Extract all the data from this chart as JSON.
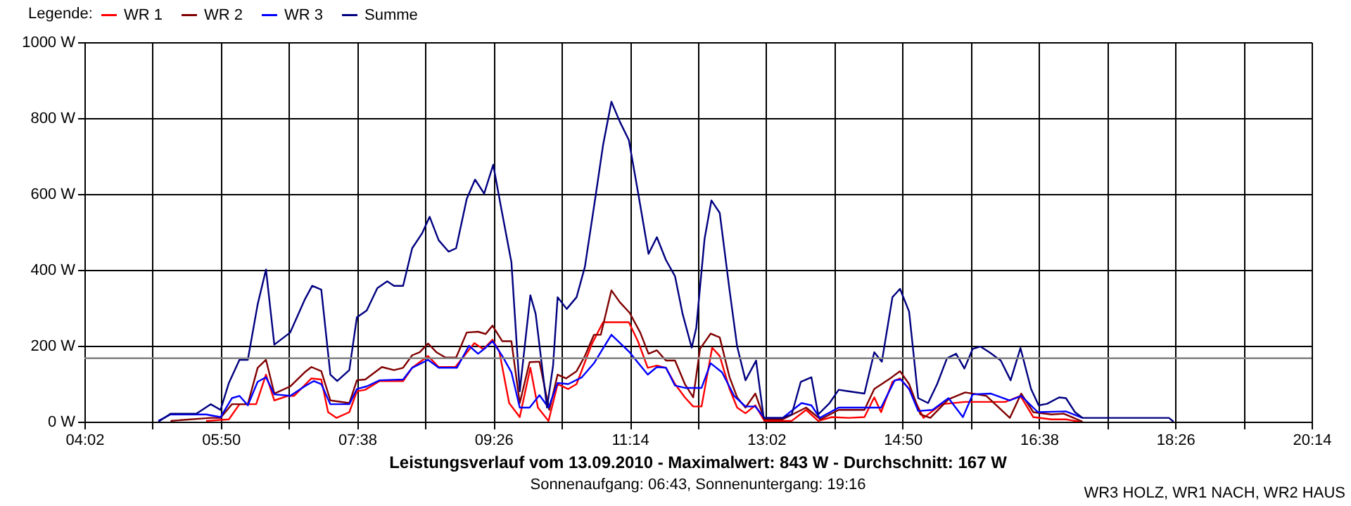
{
  "chart_data": {
    "type": "line",
    "title": "Leistungsverlauf vom 13.09.2010 - Maximalwert: 843 W - Durchschnitt: 167 W",
    "subtitle": "Sonnenaufgang: 06:43, Sonnenuntergang: 19:16",
    "legend_title": "Legende:",
    "annotations": [
      "WR3 HOLZ, WR1 NACH, WR2 HAUS"
    ],
    "series": [
      {
        "name": "WR 1",
        "color": "#ff0000",
        "x": [
          5.64,
          5.94,
          6.08,
          6.3,
          6.43,
          6.54,
          6.72,
          6.8,
          7.03,
          7.16,
          7.25,
          7.36,
          7.53,
          7.63,
          7.74,
          7.93,
          8.24,
          8.36,
          8.57,
          8.71,
          8.93,
          9.18,
          9.3,
          9.42,
          9.51,
          9.64,
          9.78,
          9.92,
          10.02,
          10.16,
          10.28,
          10.42,
          10.53,
          10.73,
          10.88,
          11.22,
          11.34,
          11.47,
          11.59,
          11.71,
          11.83,
          11.96,
          12.07,
          12.18,
          12.32,
          12.42,
          12.55,
          12.65,
          12.76,
          12.89,
          13.01,
          13.37,
          13.56,
          13.72,
          13.9,
          14.12,
          14.33,
          14.46,
          14.55,
          14.7,
          14.8,
          14.92,
          15.11,
          15.35,
          15.66,
          15.88,
          16.19,
          16.39,
          16.56,
          16.8,
          16.99,
          17.17
        ],
        "values": [
          2,
          6,
          46,
          46,
          124,
          56,
          68,
          68,
          114,
          111,
          25,
          10,
          25,
          80,
          84,
          107,
          107,
          142,
          173,
          144,
          144,
          207,
          191,
          216,
          185,
          49,
          12,
          142,
          37,
          2,
          99,
          86,
          99,
          204,
          262,
          262,
          212,
          142,
          148,
          142,
          99,
          64,
          40,
          40,
          195,
          173,
          86,
          37,
          22,
          43,
          2,
          2,
          31,
          2,
          12,
          10,
          12,
          64,
          25,
          105,
          114,
          86,
          10,
          46,
          52,
          52,
          52,
          68,
          12,
          6,
          6,
          0
        ]
      },
      {
        "name": "WR 2",
        "color": "#800000",
        "x": [
          5.17,
          5.7,
          5.83,
          5.98,
          6.19,
          6.32,
          6.43,
          6.54,
          6.75,
          6.94,
          7.03,
          7.16,
          7.28,
          7.53,
          7.63,
          7.74,
          7.96,
          8.12,
          8.24,
          8.36,
          8.46,
          8.57,
          8.68,
          8.8,
          8.94,
          9.08,
          9.23,
          9.33,
          9.42,
          9.55,
          9.67,
          9.78,
          9.91,
          10.04,
          10.17,
          10.28,
          10.39,
          10.53,
          10.64,
          10.76,
          10.85,
          10.99,
          11.1,
          11.23,
          11.37,
          11.48,
          11.59,
          11.71,
          11.83,
          11.96,
          12.07,
          12.16,
          12.3,
          12.42,
          12.55,
          12.65,
          12.76,
          12.89,
          13.01,
          13.25,
          13.56,
          13.75,
          13.99,
          14.33,
          14.46,
          14.67,
          14.8,
          14.92,
          15.07,
          15.2,
          15.44,
          15.66,
          15.94,
          16.25,
          16.4,
          16.56,
          16.8,
          16.96,
          17.14,
          17.21
        ],
        "values": [
          2,
          10,
          10,
          46,
          46,
          142,
          163,
          74,
          93,
          130,
          144,
          133,
          56,
          49,
          109,
          111,
          144,
          136,
          142,
          175,
          183,
          206,
          183,
          169,
          169,
          235,
          237,
          231,
          253,
          212,
          212,
          49,
          157,
          158,
          31,
          124,
          114,
          133,
          173,
          229,
          229,
          346,
          315,
          287,
          235,
          179,
          188,
          161,
          161,
          99,
          64,
          192,
          232,
          222,
          117,
          64,
          37,
          74,
          6,
          6,
          37,
          6,
          31,
          31,
          86,
          114,
          133,
          99,
          19,
          10,
          59,
          77,
          68,
          10,
          74,
          25,
          19,
          21,
          6,
          0
        ]
      },
      {
        "name": "WR 3",
        "color": "#0000ff",
        "x": [
          5.01,
          5.17,
          5.64,
          5.83,
          5.98,
          6.08,
          6.19,
          6.32,
          6.43,
          6.54,
          6.75,
          6.94,
          7.06,
          7.16,
          7.28,
          7.53,
          7.63,
          7.76,
          7.93,
          8.24,
          8.36,
          8.57,
          8.71,
          8.95,
          9.11,
          9.23,
          9.33,
          9.42,
          9.55,
          9.67,
          9.78,
          9.91,
          10.04,
          10.16,
          10.28,
          10.42,
          10.6,
          10.76,
          10.99,
          11.22,
          11.47,
          11.59,
          11.71,
          11.83,
          11.96,
          12.18,
          12.3,
          12.45,
          12.61,
          12.76,
          12.89,
          13.01,
          13.25,
          13.5,
          13.63,
          13.74,
          13.99,
          14.55,
          14.73,
          14.81,
          14.92,
          15.04,
          15.23,
          15.44,
          15.63,
          15.76,
          16.0,
          16.25,
          16.4,
          16.62,
          16.99,
          17.21
        ],
        "values": [
          2,
          19,
          19,
          12,
          62,
          68,
          43,
          105,
          117,
          72,
          68,
          93,
          107,
          99,
          46,
          46,
          86,
          93,
          109,
          111,
          142,
          163,
          142,
          142,
          200,
          179,
          195,
          212,
          173,
          130,
          37,
          37,
          70,
          37,
          102,
          99,
          117,
          154,
          229,
          185,
          124,
          144,
          142,
          95,
          89,
          89,
          154,
          130,
          68,
          40,
          40,
          10,
          10,
          49,
          43,
          10,
          37,
          37,
          109,
          111,
          86,
          28,
          31,
          62,
          12,
          72,
          74,
          56,
          68,
          25,
          27,
          10
        ]
      },
      {
        "name": "Summe",
        "color": "#000080",
        "x": [
          5.01,
          5.17,
          5.51,
          5.7,
          5.83,
          5.94,
          6.08,
          6.19,
          6.32,
          6.43,
          6.54,
          6.75,
          6.94,
          7.04,
          7.16,
          7.28,
          7.37,
          7.53,
          7.63,
          7.76,
          7.9,
          8.03,
          8.12,
          8.24,
          8.36,
          8.49,
          8.59,
          8.71,
          8.84,
          8.94,
          9.08,
          9.19,
          9.31,
          9.43,
          9.53,
          9.67,
          9.78,
          9.92,
          9.99,
          10.14,
          10.22,
          10.28,
          10.4,
          10.53,
          10.64,
          10.78,
          10.88,
          10.99,
          11.1,
          11.22,
          11.34,
          11.48,
          11.59,
          11.71,
          11.83,
          11.93,
          12.05,
          12.11,
          12.22,
          12.31,
          12.42,
          12.55,
          12.65,
          12.76,
          12.9,
          13.0,
          13.25,
          13.37,
          13.49,
          13.63,
          13.72,
          13.87,
          13.99,
          14.12,
          14.33,
          14.46,
          14.56,
          14.7,
          14.8,
          14.92,
          15.04,
          15.17,
          15.29,
          15.42,
          15.54,
          15.65,
          15.76,
          15.86,
          15.98,
          16.13,
          16.26,
          16.39,
          16.53,
          16.63,
          16.74,
          16.9,
          16.99,
          17.11,
          17.21,
          18.35,
          18.41
        ],
        "values": [
          0,
          21,
          21,
          46,
          31,
          102,
          163,
          163,
          309,
          401,
          203,
          235,
          321,
          358,
          348,
          124,
          107,
          136,
          275,
          293,
          352,
          370,
          358,
          358,
          457,
          496,
          540,
          478,
          448,
          457,
          587,
          638,
          601,
          677,
          568,
          420,
          80,
          333,
          284,
          37,
          148,
          328,
          297,
          328,
          408,
          593,
          729,
          843,
          791,
          742,
          606,
          442,
          486,
          426,
          383,
          284,
          195,
          247,
          482,
          583,
          550,
          346,
          198,
          109,
          161,
          10,
          10,
          19,
          105,
          117,
          19,
          49,
          84,
          80,
          74,
          183,
          158,
          328,
          350,
          290,
          62,
          49,
          99,
          167,
          179,
          140,
          192,
          198,
          183,
          161,
          109,
          194,
          86,
          43,
          47,
          64,
          62,
          25,
          10,
          10,
          0
        ]
      }
    ],
    "ref_lines": [
      {
        "axis": "y",
        "value": 167,
        "label": null,
        "color": "#808080"
      }
    ],
    "xlim": [
      4.0333,
      20.2333
    ],
    "xticks": [
      {
        "value": 4.0333,
        "label": "04:02"
      },
      {
        "value": 4.9333,
        "label": null
      },
      {
        "value": 5.8333,
        "label": "05:50"
      },
      {
        "value": 6.7333,
        "label": null
      },
      {
        "value": 7.6333,
        "label": "07:38"
      },
      {
        "value": 8.5333,
        "label": null
      },
      {
        "value": 9.4333,
        "label": "09:26"
      },
      {
        "value": 10.3333,
        "label": null
      },
      {
        "value": 11.2333,
        "label": "11:14"
      },
      {
        "value": 12.1333,
        "label": null
      },
      {
        "value": 13.0333,
        "label": "13:02"
      },
      {
        "value": 13.9333,
        "label": null
      },
      {
        "value": 14.8333,
        "label": "14:50"
      },
      {
        "value": 15.7333,
        "label": null
      },
      {
        "value": 16.6333,
        "label": "16:38"
      },
      {
        "value": 17.5333,
        "label": null
      },
      {
        "value": 18.4333,
        "label": "18:26"
      },
      {
        "value": 19.3333,
        "label": null
      },
      {
        "value": 20.2333,
        "label": "20:14"
      }
    ],
    "ylim": [
      0,
      1000
    ],
    "yticks": [
      {
        "value": 0,
        "label": "0 W"
      },
      {
        "value": 200,
        "label": "200 W"
      },
      {
        "value": 400,
        "label": "400 W"
      },
      {
        "value": 600,
        "label": "600 W"
      },
      {
        "value": 800,
        "label": "800 W"
      },
      {
        "value": 1000,
        "label": "1000 W"
      }
    ],
    "grid": true,
    "legend": "top left",
    "marker": "none",
    "line_style": "solid"
  }
}
